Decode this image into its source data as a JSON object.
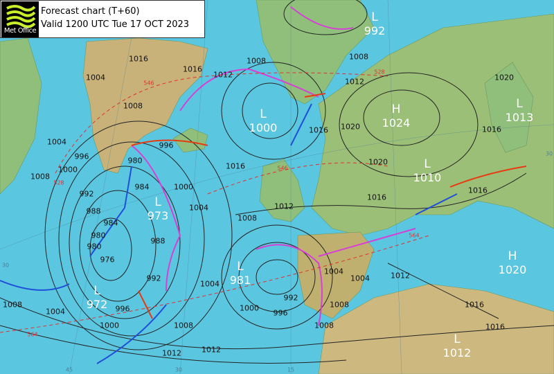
{
  "header": {
    "logo_text": "Met Office",
    "title": "Forecast chart (T+60)",
    "valid": "Valid 1200 UTC Tue 17 OCT 2023"
  },
  "colors": {
    "sea": "#5bc6e0",
    "land_low": "#8fbf7a",
    "land_high": "#c8b27a",
    "isobar": "#222222",
    "cold_front": "#1f4fd8",
    "warm_front": "#e83a10",
    "occluded_front": "#d640d6",
    "thickness": "#e03030",
    "logo_waves": "#c8f02a"
  },
  "pressure_centres": [
    {
      "type": "L",
      "value": "992"
    },
    {
      "type": "L",
      "value": "1000"
    },
    {
      "type": "H",
      "value": "1024"
    },
    {
      "type": "L",
      "value": "1013"
    },
    {
      "type": "L",
      "value": "1010"
    },
    {
      "type": "L",
      "value": "973"
    },
    {
      "type": "L",
      "value": "981"
    },
    {
      "type": "L",
      "value": "972"
    },
    {
      "type": "H",
      "value": "1020"
    },
    {
      "type": "L",
      "value": "1012"
    }
  ],
  "isobar_labels": [
    "1016",
    "1004",
    "1016",
    "1012",
    "1008",
    "1008",
    "1012",
    "1016",
    "1020",
    "1020",
    "1016",
    "1008",
    "1004",
    "1000",
    "996",
    "992",
    "988",
    "984",
    "980",
    "980",
    "996",
    "1000",
    "1004",
    "1016",
    "1012",
    "1008",
    "1004",
    "1008",
    "1000",
    "1020",
    "1016",
    "1016",
    "1012",
    "1016",
    "976",
    "984",
    "980",
    "988",
    "992",
    "996",
    "1000",
    "1008",
    "1012",
    "1004",
    "1008",
    "1004",
    "992",
    "996",
    "1004",
    "1008",
    "1012",
    "1016",
    "1008"
  ],
  "thickness_labels": [
    "546",
    "528",
    "546",
    "528",
    "564",
    "564"
  ],
  "grid_labels": [
    "45",
    "30",
    "15",
    "30",
    "30"
  ]
}
